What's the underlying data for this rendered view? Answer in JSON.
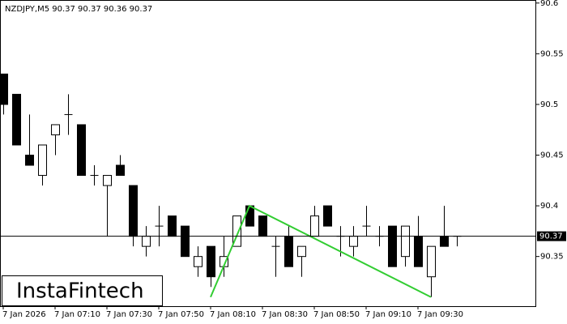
{
  "chart_data": {
    "type": "candlestick",
    "title": "NZDJPY,M5  90.37 90.37 90.36 90.37",
    "categories": [
      "7 Jan 2026",
      null,
      null,
      null,
      "7 Jan 07:10",
      null,
      null,
      null,
      "7 Jan 07:30",
      null,
      null,
      null,
      "7 Jan 07:50",
      null,
      null,
      null,
      "7 Jan 08:10",
      null,
      null,
      null,
      "7 Jan 08:30",
      null,
      null,
      null,
      "7 Jan 08:50",
      null,
      null,
      null,
      "7 Jan 09:10",
      null,
      null,
      null,
      "7 Jan 09:30",
      null,
      null,
      null
    ],
    "open": [
      90.53,
      90.51,
      90.45,
      90.43,
      90.47,
      90.49,
      90.48,
      90.43,
      90.42,
      90.44,
      90.42,
      90.36,
      90.38,
      90.39,
      90.38,
      90.34,
      90.36,
      90.34,
      90.36,
      90.4,
      90.39,
      90.36,
      90.37,
      90.35,
      90.37,
      90.4,
      90.37,
      90.36,
      90.38,
      90.37,
      90.38,
      90.35,
      90.37,
      90.33,
      90.37,
      90.37
    ],
    "high": [
      90.53,
      90.51,
      90.49,
      90.46,
      90.48,
      90.51,
      90.48,
      90.44,
      90.43,
      90.45,
      90.42,
      90.38,
      90.4,
      90.39,
      90.38,
      90.36,
      90.36,
      90.37,
      90.39,
      90.4,
      90.39,
      90.37,
      90.38,
      90.36,
      90.4,
      90.4,
      90.38,
      90.38,
      90.4,
      90.38,
      90.38,
      90.38,
      90.39,
      90.36,
      90.4,
      90.37
    ],
    "low": [
      90.49,
      90.46,
      90.44,
      90.42,
      90.45,
      90.47,
      90.43,
      90.42,
      90.37,
      90.43,
      90.36,
      90.35,
      90.36,
      90.37,
      90.35,
      90.33,
      90.32,
      90.33,
      90.36,
      90.38,
      90.37,
      90.33,
      90.34,
      90.33,
      90.37,
      90.38,
      90.35,
      90.35,
      90.37,
      90.36,
      90.34,
      90.34,
      90.34,
      90.31,
      90.36,
      90.36
    ],
    "close": [
      90.5,
      90.46,
      90.44,
      90.46,
      90.48,
      90.49,
      90.43,
      90.43,
      90.43,
      90.43,
      90.37,
      90.37,
      90.38,
      90.37,
      90.35,
      90.35,
      90.33,
      90.35,
      90.39,
      90.38,
      90.37,
      90.36,
      90.34,
      90.36,
      90.39,
      90.38,
      90.37,
      90.37,
      90.38,
      90.37,
      90.34,
      90.38,
      90.34,
      90.36,
      90.36,
      90.37
    ],
    "up_color": "#ffffff",
    "down_color": "#000000",
    "pattern": {
      "color": "#32cd32",
      "x": [
        16,
        19,
        33
      ],
      "values": [
        90.31,
        90.4,
        90.31
      ]
    },
    "current_price": 90.37,
    "ylim": [
      90.301,
      90.603
    ],
    "yticks": [
      90.35,
      90.4,
      90.45,
      90.5,
      90.55,
      90.6
    ],
    "logo": "InstaFintech"
  }
}
